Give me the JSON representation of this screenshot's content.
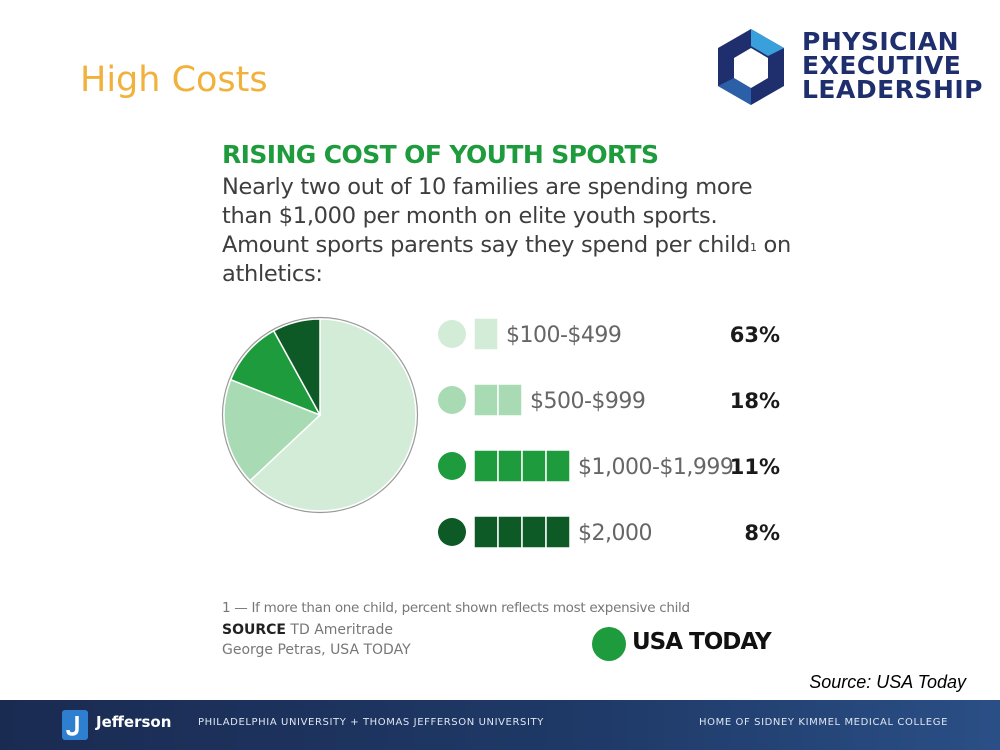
{
  "slide": {
    "title": "High Costs"
  },
  "logo": {
    "line1": "PHYSICIAN",
    "line2": "EXECUTIVE",
    "line3": "LEADERSHIP"
  },
  "infographic": {
    "title": "RISING COST OF YOUTH SPORTS",
    "subtitle_main": "Nearly two out of 10 families are spending more than $1,000 per month on elite youth sports. Amount sports parents say they spend per child",
    "subtitle_sup": "1",
    "subtitle_end": " on athletics:",
    "footnote": "1 — If more than one child, percent shown reflects most expensive child",
    "source_label": "SOURCE",
    "source_value": " TD Ameritrade",
    "credit": "George Petras, USA TODAY",
    "brand": "USA TODAY"
  },
  "source_note": "Source: USA Today",
  "footer": {
    "brand": "Jefferson",
    "middle": "PHILADELPHIA UNIVERSITY + THOMAS JEFFERSON UNIVERSITY",
    "right": "HOME OF SIDNEY KIMMEL MEDICAL COLLEGE"
  },
  "colors": {
    "title_orange": "#f0b23c",
    "infographic_green": "#1e9b3c",
    "logo_navy": "#1f2f6e",
    "footer_navy": "#1f3a68"
  },
  "chart_data": {
    "type": "pie",
    "title": "RISING COST OF YOUTH SPORTS",
    "categories": [
      "$100-$499",
      "$500-$999",
      "$1,000-$1,999",
      "$2,000"
    ],
    "values": [
      63,
      18,
      11,
      8
    ],
    "labels": [
      "63%",
      "18%",
      "11%",
      "8%"
    ],
    "colors": [
      "#d3ecd8",
      "#a8dbb4",
      "#1e9b3c",
      "#0d5a26"
    ]
  }
}
